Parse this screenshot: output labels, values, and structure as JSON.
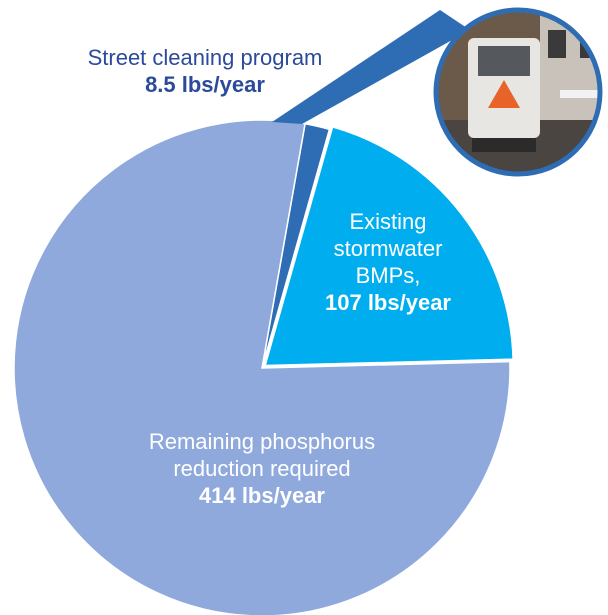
{
  "chart_data": {
    "type": "pie",
    "categories": [
      "Street cleaning program",
      "Existing stormwater BMPs,",
      "Remaining phosphorus reduction required"
    ],
    "values": [
      8.5,
      107,
      414
    ],
    "value_labels": [
      "8.5 lbs/year",
      "107 lbs/year",
      "414 lbs/year"
    ],
    "colors": [
      "#2e6db4",
      "#00aeef",
      "#8fa9dc"
    ]
  }
}
